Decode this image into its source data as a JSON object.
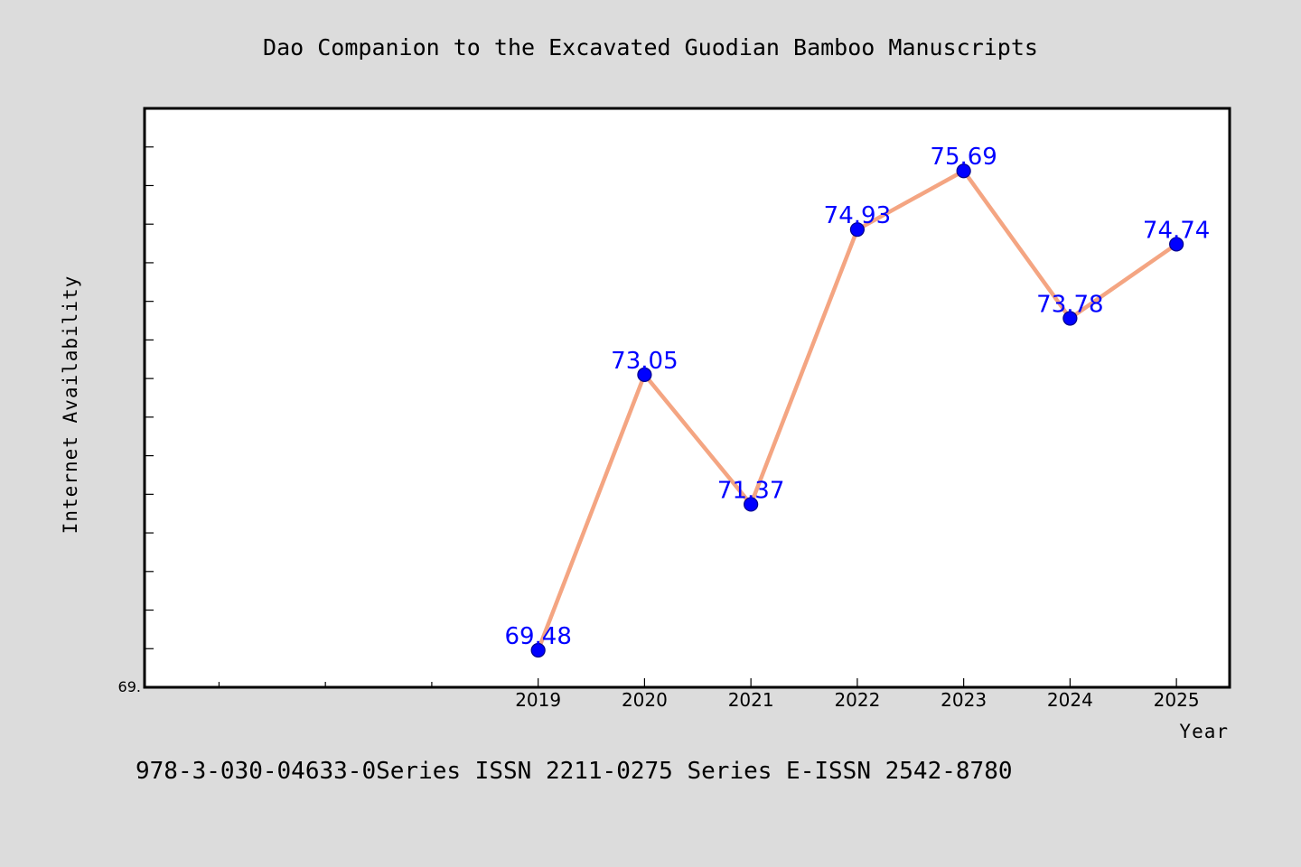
{
  "chart_data": {
    "type": "line",
    "title": "Dao Companion to the Excavated Guodian Bamboo Manuscripts",
    "xlabel": "Year",
    "ylabel": "Internet Availability",
    "x": [
      2019,
      2020,
      2021,
      2022,
      2023,
      2024,
      2025
    ],
    "x_tick_labels": [
      "2019",
      "2020",
      "2021",
      "2022",
      "2023",
      "2024",
      "2025"
    ],
    "xlim": [
      2015.3,
      2025.5
    ],
    "series": [
      {
        "values": [
          69.48,
          73.05,
          71.37,
          74.93,
          75.69,
          73.78,
          74.74
        ]
      }
    ],
    "data_labels": [
      "69.48",
      "73.05",
      "71.37",
      "74.93",
      "75.69",
      "73.78",
      "74.74"
    ],
    "ylim": [
      69.0,
      76.5
    ],
    "y_min_label": "69.",
    "grid": false,
    "legend": "none",
    "colors": {
      "line": "#f4a582",
      "marker": "#0000ff",
      "data_label": "#0000ff",
      "plot_background": "#ffffff",
      "figure_background": "#dcdcdc"
    }
  },
  "footer": {
    "text": "978-3-030-04633-0Series ISSN 2211-0275 Series E-ISSN 2542-8780"
  }
}
